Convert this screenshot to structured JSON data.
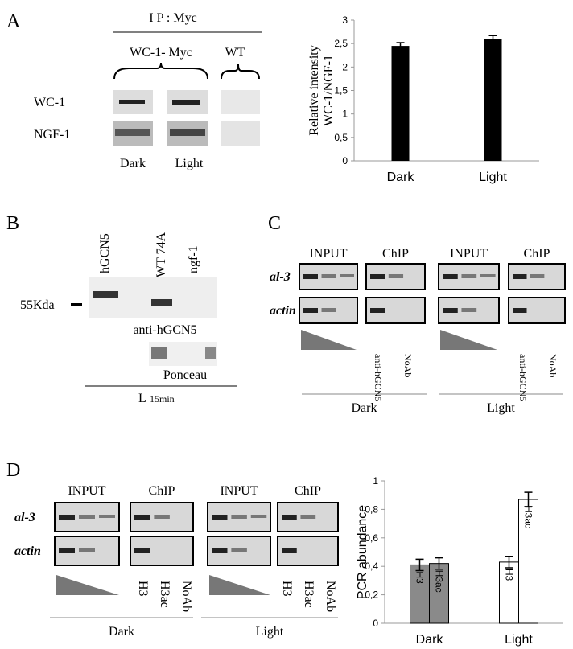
{
  "panel_a": {
    "letter": "A",
    "ip": "I P : Myc",
    "groups": [
      "WC-1- Myc",
      "WT"
    ],
    "rows": [
      "WC-1",
      "NGF-1"
    ],
    "lanes": [
      "Dark",
      "Light"
    ]
  },
  "panel_b": {
    "letter": "B",
    "lanes": [
      "hGCN5",
      "WT 74A",
      "ngf-1"
    ],
    "marker": "55Kda",
    "antibody": "anti-hGCN5",
    "stain": "Ponceau",
    "condition": "L",
    "time": "15min"
  },
  "panel_c": {
    "letter": "C",
    "columns": [
      "INPUT",
      "ChIP",
      "INPUT",
      "ChIP"
    ],
    "rows": [
      "al-3",
      "actin"
    ],
    "lanes": [
      "anti-hGCN5",
      "NoAb",
      "anti-hGCN5",
      "NoAb"
    ],
    "conditions": [
      "Dark",
      "Light"
    ]
  },
  "panel_d": {
    "letter": "D",
    "columns": [
      "INPUT",
      "ChIP",
      "INPUT",
      "ChIP"
    ],
    "rows": [
      "al-3",
      "actin"
    ],
    "lanes": [
      "H3",
      "H3ac",
      "NoAb",
      "H3",
      "H3ac",
      "NoAb"
    ],
    "conditions": [
      "Dark",
      "Light"
    ]
  },
  "chart_data": [
    {
      "type": "bar",
      "ylabel": [
        "Relative intensity",
        "WC-1/NGF-1"
      ],
      "categories": [
        "Dark",
        "Light"
      ],
      "values": [
        2.45,
        2.6
      ],
      "errors": [
        0.07,
        0.07
      ],
      "color": "#000000",
      "ylim": [
        0,
        3
      ],
      "yticks": [
        0,
        {
          "value": 0.5,
          "label": "0,5"
        },
        1,
        {
          "value": 1.5,
          "label": "1,5"
        },
        2,
        {
          "value": 2.5,
          "label": "2,5"
        },
        3
      ]
    },
    {
      "type": "grouped-bar",
      "ylabel": "PCR abundance",
      "categories": [
        "Dark",
        "Light"
      ],
      "category_colors": [
        "#8a8a8a",
        "#ffffff"
      ],
      "series": [
        {
          "name": "H3",
          "values": [
            0.41,
            0.43
          ],
          "errors": [
            0.04,
            0.04
          ]
        },
        {
          "name": "H3ac",
          "values": [
            0.42,
            0.87
          ],
          "errors": [
            0.04,
            0.05
          ]
        }
      ],
      "ylim": [
        0,
        1
      ],
      "yticks": [
        0,
        {
          "value": 0.2,
          "label": "0,2"
        },
        {
          "value": 0.4,
          "label": "0,4"
        },
        {
          "value": 0.6,
          "label": "0,6"
        },
        {
          "value": 0.8,
          "label": "0,8"
        },
        1
      ]
    }
  ]
}
